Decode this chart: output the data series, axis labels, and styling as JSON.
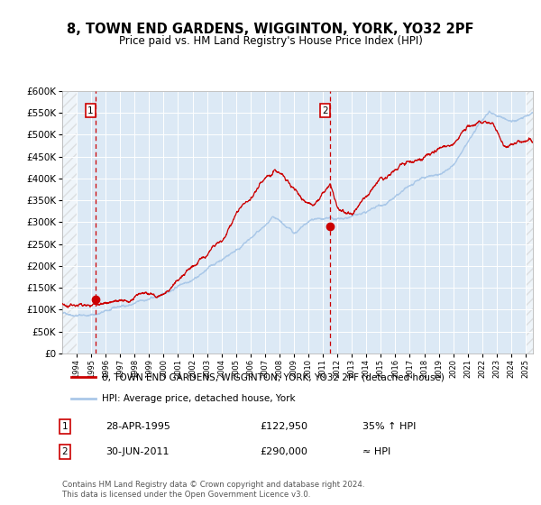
{
  "title": "8, TOWN END GARDENS, WIGGINTON, YORK, YO32 2PF",
  "subtitle": "Price paid vs. HM Land Registry's House Price Index (HPI)",
  "bg_color": "#dce9f5",
  "plot_bg_color": "#dce9f5",
  "fig_bg_color": "#ffffff",
  "hpi_color": "#aac8e8",
  "price_color": "#cc0000",
  "sale1_date_num": 1995.32,
  "sale1_price": 122950,
  "sale2_date_num": 2011.5,
  "sale2_price": 290000,
  "sale1_label": "28-APR-1995",
  "sale1_price_label": "£122,950",
  "sale1_hpi_label": "35% ↑ HPI",
  "sale2_label": "30-JUN-2011",
  "sale2_price_label": "£290,000",
  "sale2_hpi_label": "≈ HPI",
  "legend_line1": "8, TOWN END GARDENS, WIGGINTON, YORK, YO32 2PF (detached house)",
  "legend_line2": "HPI: Average price, detached house, York",
  "footer": "Contains HM Land Registry data © Crown copyright and database right 2024.\nThis data is licensed under the Open Government Licence v3.0.",
  "ylim": [
    0,
    600000
  ],
  "ytick_step": 50000,
  "xmin": 1993.0,
  "xmax": 2025.5
}
